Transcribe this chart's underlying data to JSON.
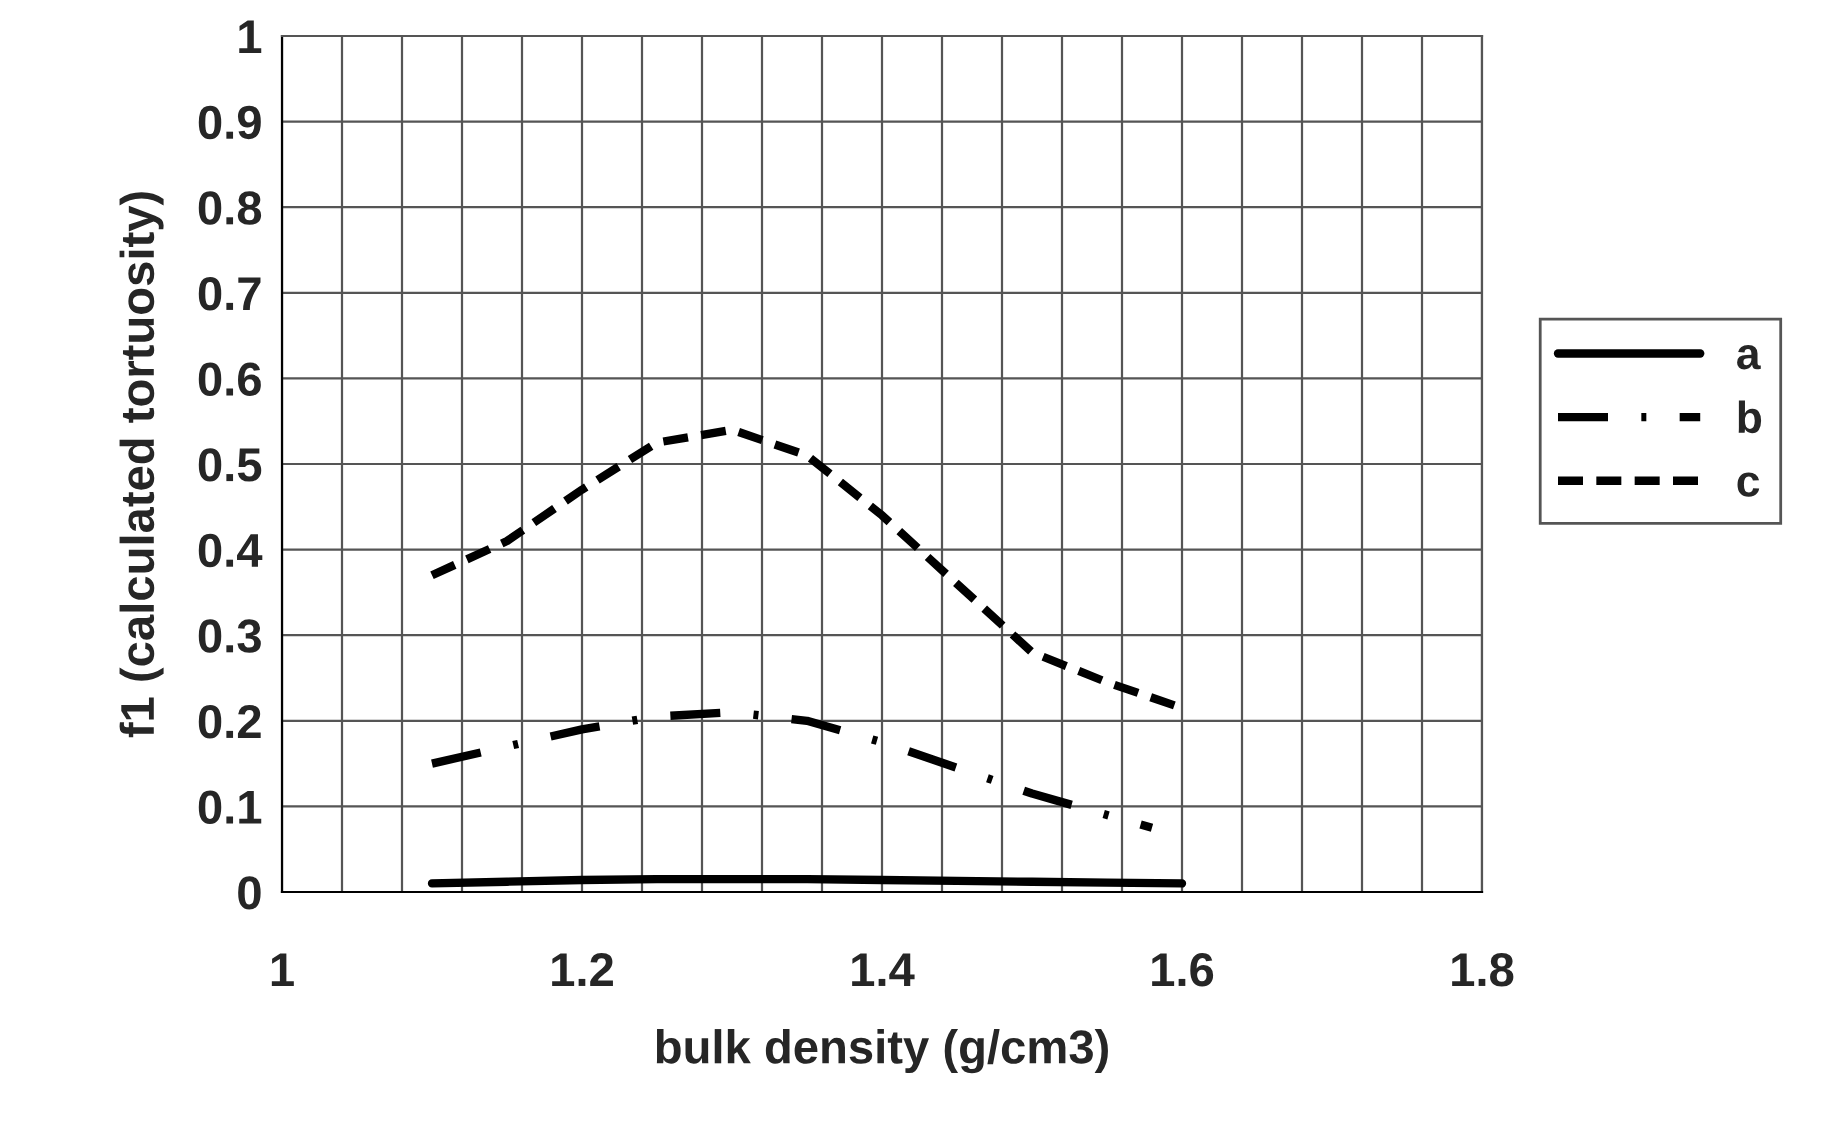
{
  "chart_data": {
    "type": "line",
    "xlabel": "bulk density (g/cm3)",
    "ylabel": "f1 (calculated tortuosity)",
    "x": [
      1.1,
      1.15,
      1.2,
      1.25,
      1.3,
      1.35,
      1.4,
      1.45,
      1.5,
      1.55,
      1.6
    ],
    "series": [
      {
        "name": "a",
        "color": "#000000",
        "line_style": "solid",
        "values": [
          0.01,
          0.012,
          0.014,
          0.015,
          0.015,
          0.015,
          0.014,
          0.013,
          0.012,
          0.011,
          0.01
        ]
      },
      {
        "name": "b",
        "color": "#000000",
        "line_style": "dashdot",
        "x": [
          1.1,
          1.15,
          1.2,
          1.25,
          1.3,
          1.35,
          1.4,
          1.45,
          1.5,
          1.55,
          1.58
        ],
        "values": [
          0.15,
          0.17,
          0.19,
          0.205,
          0.21,
          0.2,
          0.175,
          0.145,
          0.115,
          0.09,
          0.075
        ]
      },
      {
        "name": "c",
        "color": "#000000",
        "line_style": "dashed",
        "values": [
          0.37,
          0.41,
          0.47,
          0.525,
          0.54,
          0.51,
          0.44,
          0.36,
          0.28,
          0.245,
          0.215
        ]
      }
    ],
    "xlim": [
      1,
      1.8
    ],
    "ylim": [
      0,
      1
    ],
    "xticks": [
      1,
      {
        "value": 1.04,
        "label": null
      },
      {
        "value": 1.08,
        "label": null
      },
      {
        "value": 1.12,
        "label": null
      },
      {
        "value": 1.16,
        "label": null
      },
      1.2,
      {
        "value": 1.24,
        "label": null
      },
      {
        "value": 1.28,
        "label": null
      },
      {
        "value": 1.32,
        "label": null
      },
      {
        "value": 1.36,
        "label": null
      },
      1.4,
      {
        "value": 1.44,
        "label": null
      },
      {
        "value": 1.48,
        "label": null
      },
      {
        "value": 1.52,
        "label": null
      },
      {
        "value": 1.56,
        "label": null
      },
      1.6,
      {
        "value": 1.64,
        "label": null
      },
      {
        "value": 1.68,
        "label": null
      },
      {
        "value": 1.72,
        "label": null
      },
      {
        "value": 1.76,
        "label": null
      },
      1.8
    ],
    "yticks": [
      0,
      0.1,
      0.2,
      0.3,
      0.4,
      0.5,
      0.6,
      0.7,
      0.8,
      0.9,
      1
    ],
    "grid": true,
    "legend": "right"
  }
}
